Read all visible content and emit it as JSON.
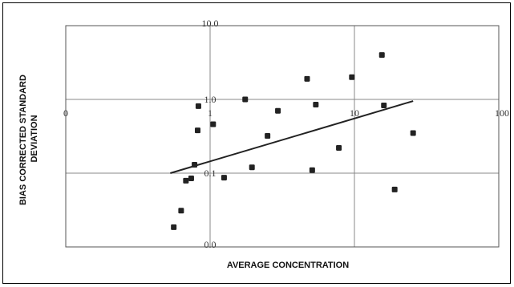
{
  "chart_data": {
    "type": "scatter",
    "xlabel": "AVERAGE CONCENTRATION",
    "ylabel": [
      "BIAS CORRECTED STANDARD",
      "DEVIATION"
    ],
    "x_scale": "log",
    "y_scale": "log",
    "xlim": [
      0.1,
      100
    ],
    "ylim": [
      0.01,
      10
    ],
    "x_ticks": [
      {
        "value": 0.1,
        "label": "0"
      },
      {
        "value": 1,
        "label": "1"
      },
      {
        "value": 10,
        "label": "10"
      },
      {
        "value": 100,
        "label": "100"
      }
    ],
    "y_ticks": [
      {
        "value": 0.01,
        "label": "0.0"
      },
      {
        "value": 0.1,
        "label": "0.1"
      },
      {
        "value": 1,
        "label": "1.0"
      },
      {
        "value": 10,
        "label": "10.0"
      }
    ],
    "grid": true,
    "legend": "none",
    "marker_color": "#222222",
    "points": [
      {
        "x": 0.56,
        "y": 0.0185
      },
      {
        "x": 0.63,
        "y": 0.031
      },
      {
        "x": 0.68,
        "y": 0.079
      },
      {
        "x": 0.74,
        "y": 0.085
      },
      {
        "x": 0.78,
        "y": 0.13
      },
      {
        "x": 0.82,
        "y": 0.38
      },
      {
        "x": 0.83,
        "y": 0.81
      },
      {
        "x": 1.05,
        "y": 0.46
      },
      {
        "x": 1.25,
        "y": 0.087
      },
      {
        "x": 1.75,
        "y": 1.0
      },
      {
        "x": 1.95,
        "y": 0.12
      },
      {
        "x": 2.5,
        "y": 0.32
      },
      {
        "x": 2.95,
        "y": 0.7
      },
      {
        "x": 4.7,
        "y": 1.9
      },
      {
        "x": 5.1,
        "y": 0.11
      },
      {
        "x": 5.4,
        "y": 0.85
      },
      {
        "x": 7.8,
        "y": 0.22
      },
      {
        "x": 9.6,
        "y": 2.0
      },
      {
        "x": 15.5,
        "y": 4.0
      },
      {
        "x": 16.0,
        "y": 0.83
      },
      {
        "x": 19.0,
        "y": 0.06
      },
      {
        "x": 25.5,
        "y": 0.35
      }
    ],
    "trendline": [
      {
        "x": 0.53,
        "y": 0.1
      },
      {
        "x": 25.5,
        "y": 0.95
      }
    ]
  }
}
